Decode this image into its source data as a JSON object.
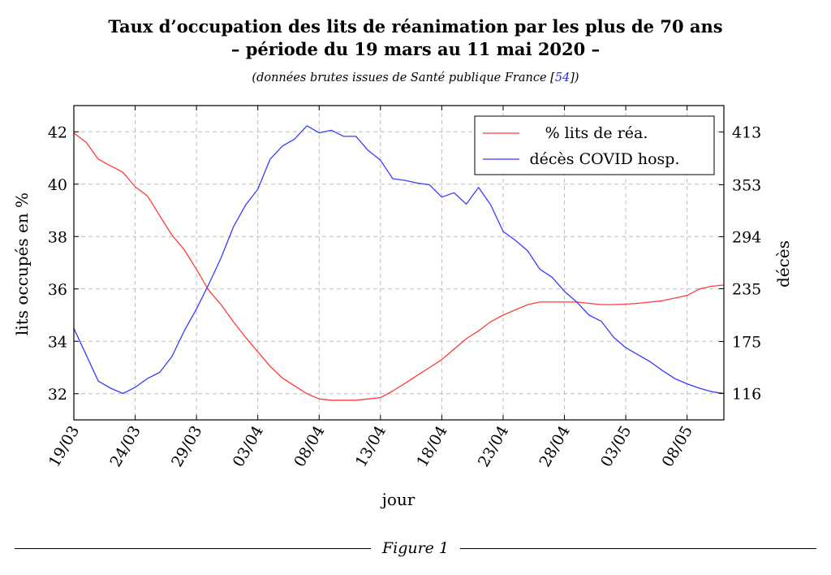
{
  "header": {
    "title_line1": "Taux d’occupation des lits de réanimation par les plus de 70 ans",
    "title_line2": "– période du 19 mars au 11 mai 2020 –",
    "subtitle_pre": "(données brutes issues de Santé publique France [",
    "subtitle_ref": "54",
    "subtitle_post": "])"
  },
  "caption": "Figure 1",
  "chart_data": {
    "type": "line",
    "xlabel": "jour",
    "ylabel_left": "lits occupés en %",
    "ylabel_right": "décès",
    "x_tick_labels": [
      "19/03",
      "24/03",
      "29/03",
      "03/04",
      "08/04",
      "13/04",
      "18/04",
      "23/04",
      "28/04",
      "03/05",
      "08/05"
    ],
    "x_tick_days": [
      0,
      5,
      10,
      15,
      20,
      25,
      30,
      35,
      40,
      45,
      50
    ],
    "xlim_days": [
      0,
      53
    ],
    "left_axis": {
      "ylim": [
        31,
        43
      ],
      "ticks": [
        32,
        34,
        36,
        38,
        40,
        42
      ]
    },
    "right_axis": {
      "ylim": [
        86,
        443
      ],
      "ticks": [
        116,
        175,
        235,
        294,
        353,
        413
      ]
    },
    "grid": true,
    "legend_position": "top-right",
    "colors": {
      "occupancy": "#ff3b3b",
      "deaths": "#3a3aff"
    },
    "series": [
      {
        "name": "% lits de réa.",
        "axis": "left",
        "x_days": [
          0,
          1,
          2,
          3,
          4,
          5,
          6,
          7,
          8,
          9,
          10,
          11,
          12,
          13,
          14,
          15,
          16,
          17,
          18,
          19,
          20,
          21,
          22,
          23,
          24,
          25,
          26,
          27,
          28,
          29,
          30,
          31,
          32,
          33,
          34,
          35,
          36,
          37,
          38,
          39,
          40,
          41,
          42,
          43,
          44,
          45,
          46,
          47,
          48,
          49,
          50,
          51,
          52,
          53
        ],
        "values": [
          41.95,
          41.6,
          40.95,
          40.7,
          40.45,
          39.9,
          39.55,
          38.8,
          38.05,
          37.5,
          36.75,
          35.95,
          35.4,
          34.75,
          34.15,
          33.6,
          33.05,
          32.6,
          32.3,
          32.0,
          31.8,
          31.75,
          31.75,
          31.75,
          31.8,
          31.85,
          32.1,
          32.4,
          32.7,
          33.0,
          33.3,
          33.7,
          34.1,
          34.4,
          34.75,
          35.0,
          35.2,
          35.4,
          35.5,
          35.5,
          35.5,
          35.5,
          35.45,
          35.4,
          35.4,
          35.42,
          35.45,
          35.5,
          35.55,
          35.65,
          35.75,
          36.0,
          36.1,
          36.15
        ],
        "note": ""
      },
      {
        "name": "décès COVID hosp.",
        "axis": "right",
        "x_days": [
          0,
          1,
          2,
          3,
          4,
          5,
          6,
          7,
          8,
          9,
          10,
          11,
          12,
          13,
          14,
          15,
          16,
          17,
          18,
          19,
          20,
          21,
          22,
          23,
          24,
          25,
          26,
          27,
          28,
          29,
          30,
          31,
          32,
          33,
          34,
          35,
          36,
          37,
          38,
          39,
          40,
          41,
          42,
          43,
          44,
          45,
          46,
          47,
          48,
          49,
          50,
          51,
          52,
          53
        ],
        "values": [
          190,
          160,
          130,
          122,
          116,
          123,
          133,
          140,
          158,
          187,
          212,
          240,
          270,
          305,
          330,
          348,
          382,
          397,
          405,
          420,
          412,
          415,
          408,
          408,
          392,
          381,
          360,
          358,
          355,
          353,
          339,
          344,
          331,
          350,
          330,
          300,
          290,
          278,
          257,
          248,
          232,
          220,
          205,
          198,
          180,
          168,
          160,
          152,
          142,
          133,
          127,
          122,
          118,
          116
        ]
      }
    ]
  }
}
